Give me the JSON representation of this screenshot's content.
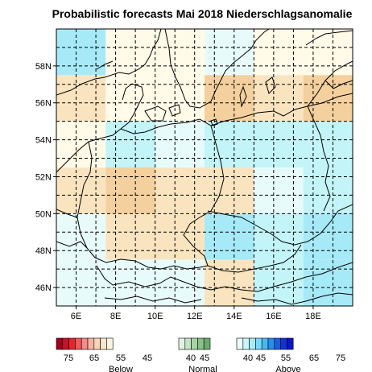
{
  "title": "Probabilistic forecasts Mai 2018 Niederschlagsanomalie",
  "map": {
    "lon_labels": [
      "6E",
      "8E",
      "10E",
      "12E",
      "14E",
      "16E",
      "18E"
    ],
    "lat_labels": [
      "46N",
      "48N",
      "50N",
      "52N",
      "54N",
      "56N",
      "58N"
    ],
    "grid": "dashed",
    "colors": {
      "below_1": "#fae4c0",
      "below_2": "#f3d09d",
      "normal_clim": "#fffbe8",
      "above_1": "#e8fbfb",
      "above_2": "#c3f4f8",
      "above_3": "#a6eaf8",
      "coast": "#000000"
    }
  },
  "legend": {
    "below": {
      "label": "Below",
      "ticks": [
        "75",
        "65",
        "55",
        "45"
      ],
      "colors": [
        "#a0001e",
        "#c8102e",
        "#e8242a",
        "#f05a5a",
        "#f48a8a",
        "#f6b4a8",
        "#f8d4b8",
        "#fae8cc",
        "#fdf4e0"
      ]
    },
    "normal": {
      "label": "Normal",
      "ticks": [
        "40",
        "45"
      ],
      "colors": [
        "#e2f3e2",
        "#c4e4c4",
        "#a8d4a8",
        "#8ac08a",
        "#6ea86e"
      ]
    },
    "above": {
      "label": "Above",
      "ticks": [
        "40",
        "45",
        "55",
        "65",
        "75"
      ],
      "colors": [
        "#eefcfc",
        "#c8f6fa",
        "#a4ecfa",
        "#7ad6f8",
        "#4ab8f0",
        "#2a8ce8",
        "#1a5ce0",
        "#1030d8",
        "#0a14c8"
      ]
    }
  }
}
